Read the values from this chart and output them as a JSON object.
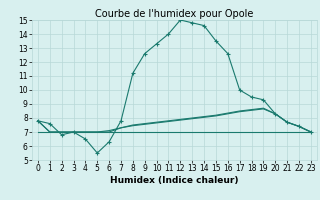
{
  "title": "Courbe de l'humidex pour Opole",
  "xlabel": "Humidex (Indice chaleur)",
  "x": [
    0,
    1,
    2,
    3,
    4,
    5,
    6,
    7,
    8,
    9,
    10,
    11,
    12,
    13,
    14,
    15,
    16,
    17,
    18,
    19,
    20,
    21,
    22,
    23
  ],
  "line1": [
    7.8,
    7.6,
    6.8,
    7.0,
    6.5,
    5.5,
    6.3,
    7.8,
    11.2,
    12.6,
    13.3,
    14.0,
    15.0,
    14.8,
    14.6,
    13.5,
    12.6,
    10.0,
    9.5,
    9.3,
    8.3,
    7.7,
    7.4,
    7.0
  ],
  "line2": [
    7.0,
    7.0,
    7.0,
    7.0,
    7.0,
    7.0,
    7.0,
    7.0,
    7.0,
    7.0,
    7.0,
    7.0,
    7.0,
    7.0,
    7.0,
    7.0,
    7.0,
    7.0,
    7.0,
    7.0,
    7.0,
    7.0,
    7.0,
    7.0
  ],
  "line3": [
    7.8,
    7.0,
    7.0,
    7.0,
    7.0,
    7.0,
    7.0,
    7.3,
    7.5,
    7.6,
    7.7,
    7.8,
    7.9,
    8.0,
    8.1,
    8.2,
    8.35,
    8.5,
    8.6,
    8.7,
    8.3,
    7.7,
    7.4,
    7.0
  ],
  "line4": [
    7.8,
    7.0,
    7.0,
    7.0,
    7.0,
    7.0,
    7.1,
    7.3,
    7.45,
    7.55,
    7.65,
    7.75,
    7.85,
    7.95,
    8.05,
    8.15,
    8.3,
    8.45,
    8.55,
    8.65,
    8.3,
    7.7,
    7.4,
    7.0
  ],
  "color": "#1a7a6e",
  "bg_color": "#d8f0ef",
  "grid_color": "#b8d8d8",
  "ylim": [
    5,
    15
  ],
  "xlim": [
    -0.5,
    23.5
  ],
  "yticks": [
    5,
    6,
    7,
    8,
    9,
    10,
    11,
    12,
    13,
    14,
    15
  ],
  "xticks": [
    0,
    1,
    2,
    3,
    4,
    5,
    6,
    7,
    8,
    9,
    10,
    11,
    12,
    13,
    14,
    15,
    16,
    17,
    18,
    19,
    20,
    21,
    22,
    23
  ],
  "title_fontsize": 7,
  "tick_fontsize": 5.5,
  "xlabel_fontsize": 6.5,
  "marker": "+",
  "markersize": 3,
  "linewidth": 0.8
}
